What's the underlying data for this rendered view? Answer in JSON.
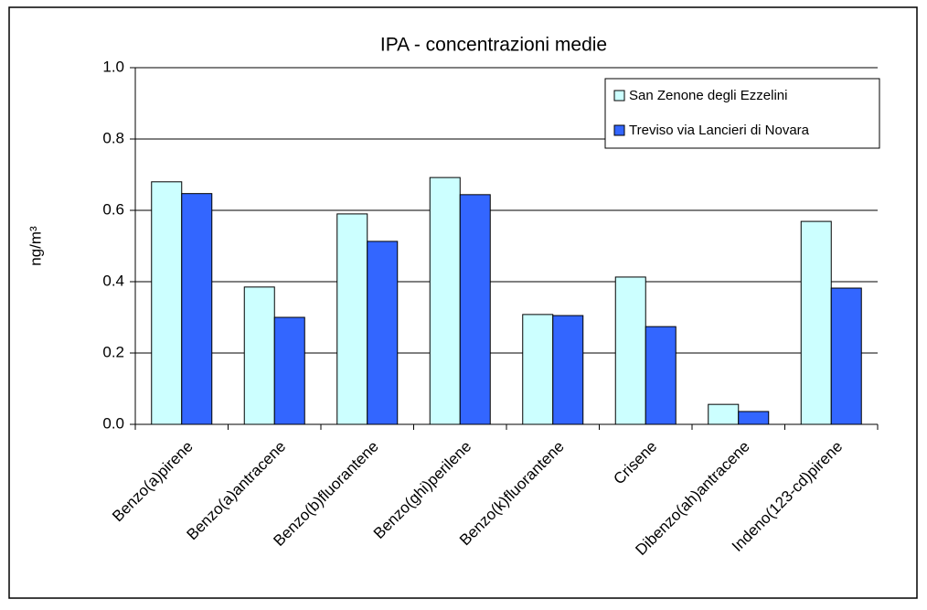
{
  "chart_data": {
    "type": "bar",
    "title": "IPA - concentrazioni medie",
    "y_label": "ng/m³",
    "categories": [
      "Benzo(a)pirene",
      "Benzo(a)antracene",
      "Benzo(b)fluorantene",
      "Benzo(ghi)perilene",
      "Benzo(k)fluorantene",
      "Crisene",
      "Dibenzo(ah)antracene",
      "Indeno(123-cd)pirene"
    ],
    "series": [
      {
        "name": "San Zenone degli Ezzelini",
        "color": "#ccffff",
        "values": [
          0.68,
          0.385,
          0.59,
          0.692,
          0.308,
          0.413,
          0.056,
          0.569
        ]
      },
      {
        "name": "Treviso via Lancieri di Novara",
        "color": "#3366ff",
        "values": [
          0.647,
          0.3,
          0.513,
          0.644,
          0.305,
          0.274,
          0.036,
          0.382
        ]
      }
    ],
    "ylim": [
      0,
      1
    ],
    "yticks": [
      {
        "value": 0,
        "label": "0.0"
      },
      0.2,
      0.4,
      0.6,
      0.8,
      {
        "value": 1,
        "label": "1.0"
      }
    ],
    "grid": true,
    "legend": "top-right"
  }
}
